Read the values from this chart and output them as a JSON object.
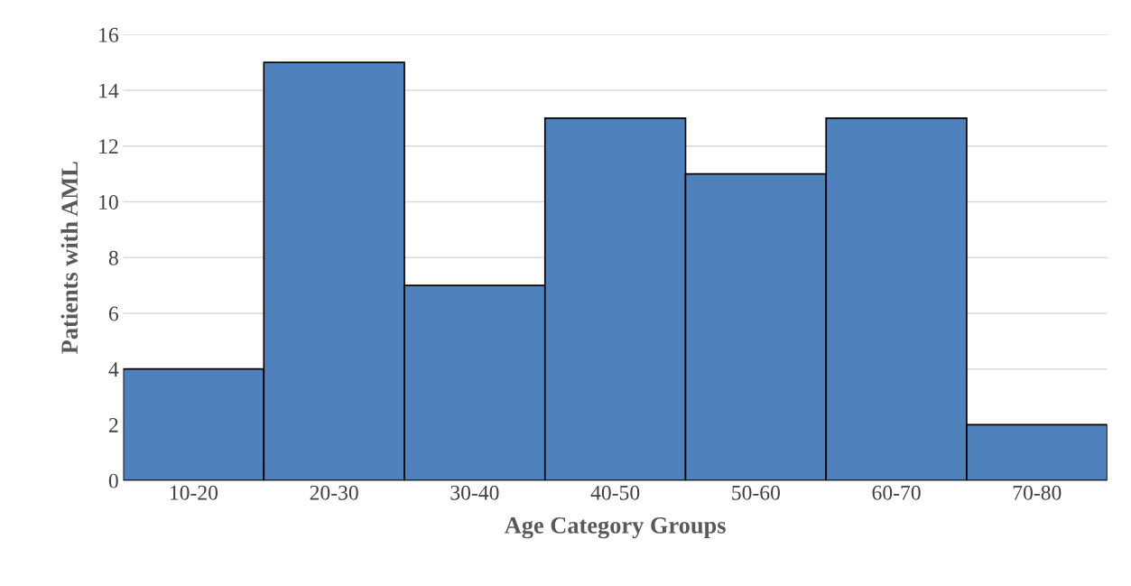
{
  "chart_data": {
    "type": "bar",
    "xlabel": "Age Category Groups",
    "ylabel": "Patients with AML",
    "categories": [
      "10-20",
      "20-30",
      "30-40",
      "40-50",
      "50-60",
      "60-70",
      "70-80"
    ],
    "values": [
      4,
      15,
      7,
      13,
      11,
      13,
      2
    ],
    "color": "#4f81bd",
    "ylim": [
      0,
      16
    ],
    "yticks": [
      0,
      2,
      4,
      6,
      8,
      10,
      12,
      14,
      16
    ],
    "grid": "y"
  }
}
